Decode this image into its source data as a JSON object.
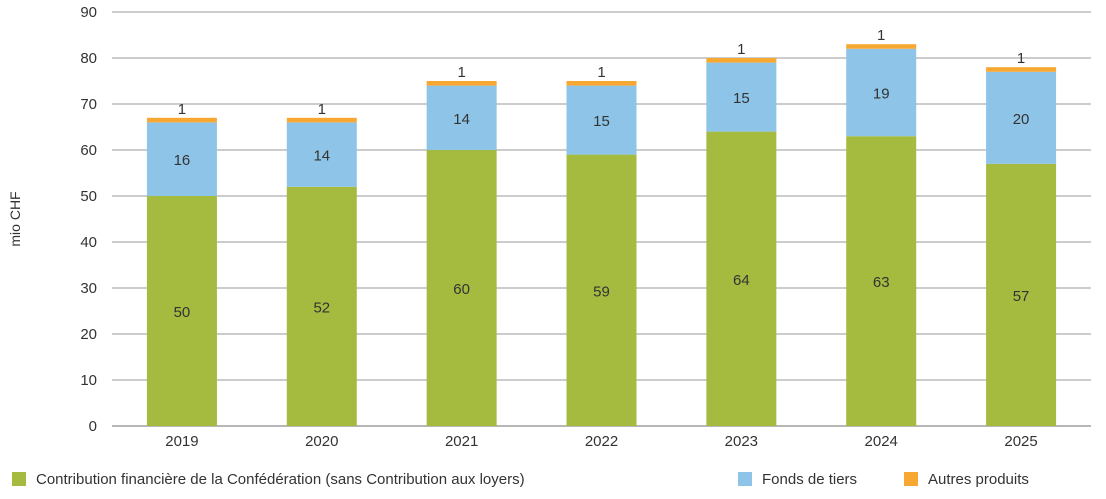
{
  "chart_data": {
    "type": "bar",
    "stacked": true,
    "categories": [
      "2019",
      "2020",
      "2021",
      "2022",
      "2023",
      "2024",
      "2025"
    ],
    "series": [
      {
        "name": "Contribution financière de la Confédération (sans Contribution aux loyers)",
        "color": "#a4bb3f",
        "values": [
          50,
          52,
          60,
          59,
          64,
          63,
          57
        ],
        "labels": [
          "50",
          "52",
          "60",
          "59",
          "64",
          "63",
          "57"
        ]
      },
      {
        "name": "Fonds de tiers",
        "color": "#8ec4e8",
        "values": [
          16,
          14,
          14,
          15,
          15,
          19,
          20
        ],
        "labels": [
          "16",
          "14",
          "14",
          "15",
          "15",
          "19",
          "20"
        ]
      },
      {
        "name": "Autres produits",
        "color": "#f7a833",
        "values": [
          1,
          1,
          1,
          1,
          1,
          1,
          1
        ],
        "labels": [
          "1",
          "1",
          "1",
          "1",
          "1",
          "1",
          "1"
        ]
      }
    ],
    "title": "",
    "xlabel": "",
    "ylabel": "mio CHF",
    "ylim": [
      0,
      90
    ],
    "yticks": [
      "0",
      "10",
      "20",
      "30",
      "40",
      "50",
      "60",
      "70",
      "80",
      "90"
    ],
    "grid": true,
    "legend_position": "bottom"
  }
}
